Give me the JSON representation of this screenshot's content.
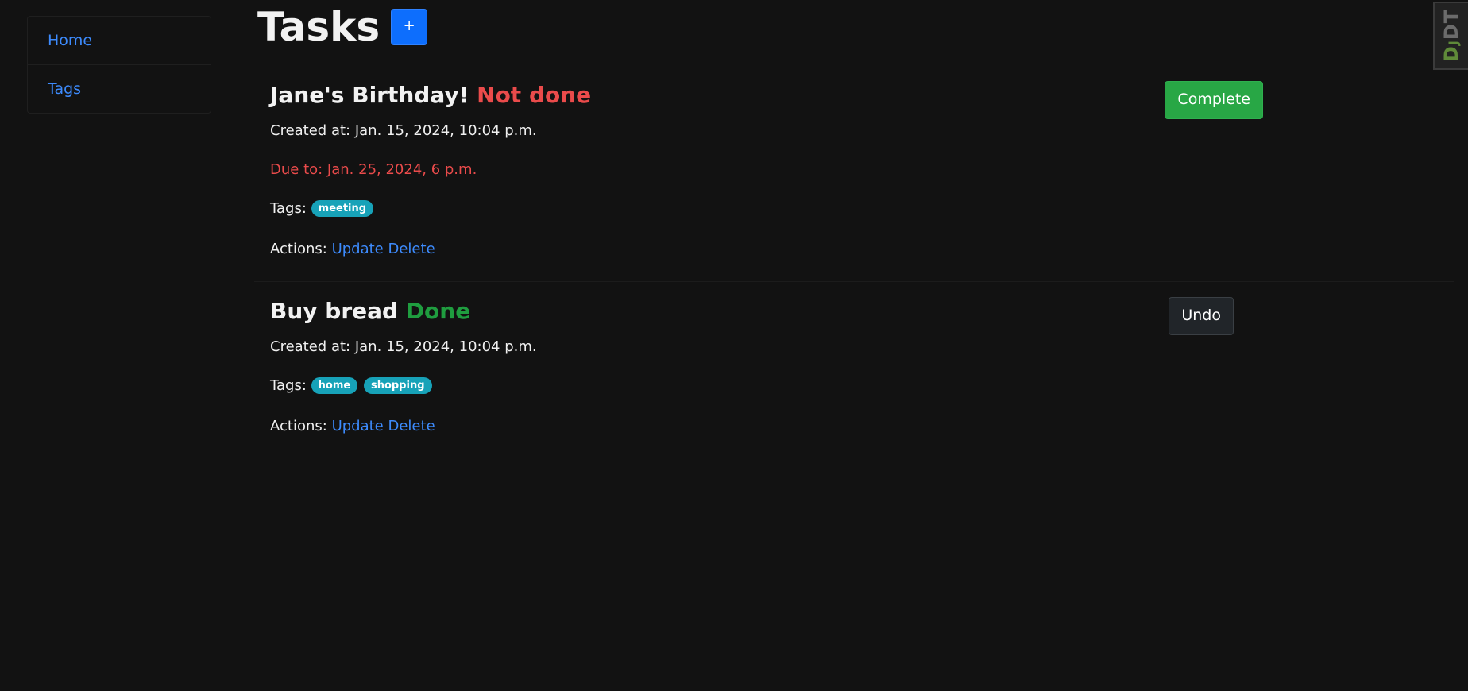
{
  "sidebar": {
    "items": [
      {
        "label": "Home"
      },
      {
        "label": "Tags"
      }
    ]
  },
  "header": {
    "title": "Tasks",
    "add_label": "+"
  },
  "tasks": [
    {
      "title": "Jane's Birthday!",
      "status": "Not done",
      "created": "Created at: Jan. 15, 2024, 10:04 p.m.",
      "due": "Due to: Jan. 25, 2024, 6 p.m.",
      "tags_label": "Tags:",
      "tags": [
        "meeting"
      ],
      "actions_label": "Actions:",
      "update_label": "Update",
      "delete_label": "Delete",
      "button_label": "Complete"
    },
    {
      "title": "Buy bread",
      "status": "Done",
      "created": "Created at: Jan. 15, 2024, 10:04 p.m.",
      "tags_label": "Tags:",
      "tags": [
        "home",
        "shopping"
      ],
      "actions_label": "Actions:",
      "update_label": "Update",
      "delete_label": "Delete",
      "button_label": "Undo"
    }
  ],
  "debug_toolbar": {
    "label_d": "D",
    "label_j": "J",
    "label_dt": "DT"
  },
  "colors": {
    "background": "#121212",
    "link": "#3d8bfd",
    "not_done": "#ea4b4b",
    "done": "#1f9d3f",
    "tag": "#17a2b8",
    "complete_button": "#28a745",
    "undo_button": "#212529",
    "primary": "#0d6efd"
  }
}
